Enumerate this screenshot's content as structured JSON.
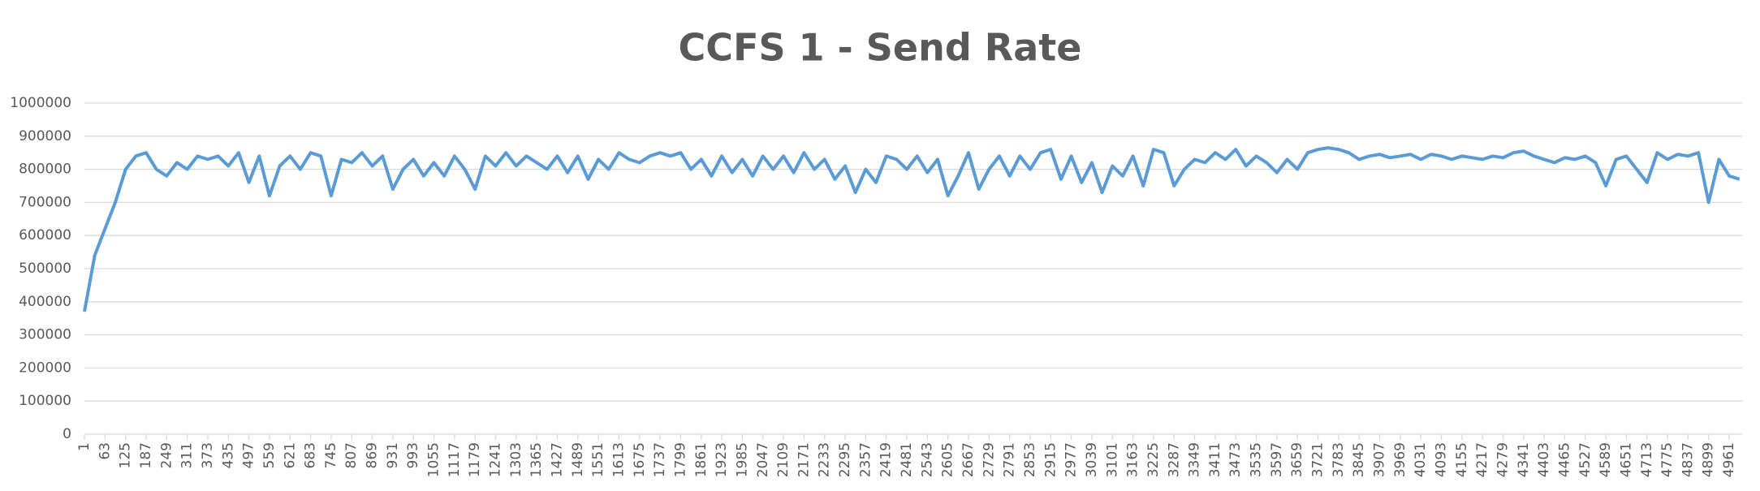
{
  "chart_data": {
    "type": "line",
    "title": "CCFS 1 - Send Rate",
    "color": "#5b9bd5",
    "grid": true,
    "xlim": [
      1,
      5000
    ],
    "ylim": [
      0,
      1000000
    ],
    "yticks": [
      0,
      100000,
      200000,
      300000,
      400000,
      500000,
      600000,
      700000,
      800000,
      900000,
      1000000
    ],
    "xticks": [
      1,
      63,
      125,
      187,
      249,
      311,
      373,
      435,
      497,
      559,
      621,
      683,
      745,
      807,
      869,
      931,
      993,
      1055,
      1117,
      1179,
      1241,
      1303,
      1365,
      1427,
      1489,
      1551,
      1613,
      1675,
      1737,
      1799,
      1861,
      1923,
      1985,
      2047,
      2109,
      2171,
      2233,
      2295,
      2357,
      2419,
      2481,
      2543,
      2605,
      2667,
      2729,
      2791,
      2853,
      2915,
      2977,
      3039,
      3101,
      3163,
      3225,
      3287,
      3349,
      3411,
      3473,
      3535,
      3597,
      3659,
      3721,
      3783,
      3845,
      3907,
      3969,
      4031,
      4093,
      4155,
      4217,
      4279,
      4341,
      4403,
      4465,
      4527,
      4589,
      4651,
      4713,
      4775,
      4837,
      4899,
      4961
    ],
    "x": [
      1,
      32,
      63,
      94,
      125,
      156,
      187,
      218,
      249,
      280,
      311,
      342,
      373,
      404,
      435,
      466,
      497,
      528,
      559,
      590,
      621,
      652,
      683,
      714,
      745,
      776,
      807,
      838,
      869,
      900,
      931,
      962,
      993,
      1024,
      1055,
      1086,
      1117,
      1148,
      1179,
      1210,
      1241,
      1272,
      1303,
      1334,
      1365,
      1396,
      1427,
      1458,
      1489,
      1520,
      1551,
      1582,
      1613,
      1644,
      1675,
      1706,
      1737,
      1768,
      1799,
      1830,
      1861,
      1892,
      1923,
      1954,
      1985,
      2016,
      2047,
      2078,
      2109,
      2140,
      2171,
      2202,
      2233,
      2264,
      2295,
      2326,
      2357,
      2388,
      2419,
      2450,
      2481,
      2512,
      2543,
      2574,
      2605,
      2636,
      2667,
      2698,
      2729,
      2760,
      2791,
      2822,
      2853,
      2884,
      2915,
      2946,
      2977,
      3008,
      3039,
      3070,
      3101,
      3132,
      3163,
      3194,
      3225,
      3256,
      3287,
      3318,
      3349,
      3380,
      3411,
      3442,
      3473,
      3504,
      3535,
      3566,
      3597,
      3628,
      3659,
      3690,
      3721,
      3752,
      3783,
      3814,
      3845,
      3876,
      3907,
      3938,
      3969,
      4000,
      4031,
      4062,
      4093,
      4124,
      4155,
      4186,
      4217,
      4248,
      4279,
      4310,
      4341,
      4372,
      4403,
      4434,
      4465,
      4496,
      4527,
      4558,
      4589,
      4620,
      4651,
      4682,
      4713,
      4744,
      4775,
      4806,
      4837,
      4868,
      4899,
      4930,
      4961,
      4992
    ],
    "values": [
      370000,
      540000,
      620000,
      700000,
      800000,
      840000,
      850000,
      800000,
      780000,
      820000,
      800000,
      840000,
      830000,
      840000,
      810000,
      850000,
      760000,
      840000,
      720000,
      810000,
      840000,
      800000,
      850000,
      840000,
      720000,
      830000,
      820000,
      850000,
      810000,
      840000,
      740000,
      800000,
      830000,
      780000,
      820000,
      780000,
      840000,
      800000,
      740000,
      840000,
      810000,
      850000,
      810000,
      840000,
      820000,
      800000,
      840000,
      790000,
      840000,
      770000,
      830000,
      800000,
      850000,
      830000,
      820000,
      840000,
      850000,
      840000,
      850000,
      800000,
      830000,
      780000,
      840000,
      790000,
      830000,
      780000,
      840000,
      800000,
      840000,
      790000,
      850000,
      800000,
      830000,
      770000,
      810000,
      730000,
      800000,
      760000,
      840000,
      830000,
      800000,
      840000,
      790000,
      830000,
      720000,
      780000,
      850000,
      740000,
      800000,
      840000,
      780000,
      840000,
      800000,
      850000,
      860000,
      770000,
      840000,
      760000,
      820000,
      730000,
      810000,
      780000,
      840000,
      750000,
      860000,
      850000,
      750000,
      800000,
      830000,
      820000,
      850000,
      830000,
      860000,
      810000,
      840000,
      820000,
      790000,
      830000,
      800000,
      850000,
      860000,
      865000,
      860000,
      850000,
      830000,
      840000,
      845000,
      835000,
      840000,
      845000,
      830000,
      845000,
      840000,
      830000,
      840000,
      835000,
      830000,
      840000,
      835000,
      850000,
      855000,
      840000,
      830000,
      820000,
      835000,
      830000,
      840000,
      820000,
      750000,
      830000,
      840000,
      800000,
      760000,
      850000,
      830000,
      845000,
      840000,
      850000,
      700000,
      830000,
      780000,
      770000
    ]
  }
}
